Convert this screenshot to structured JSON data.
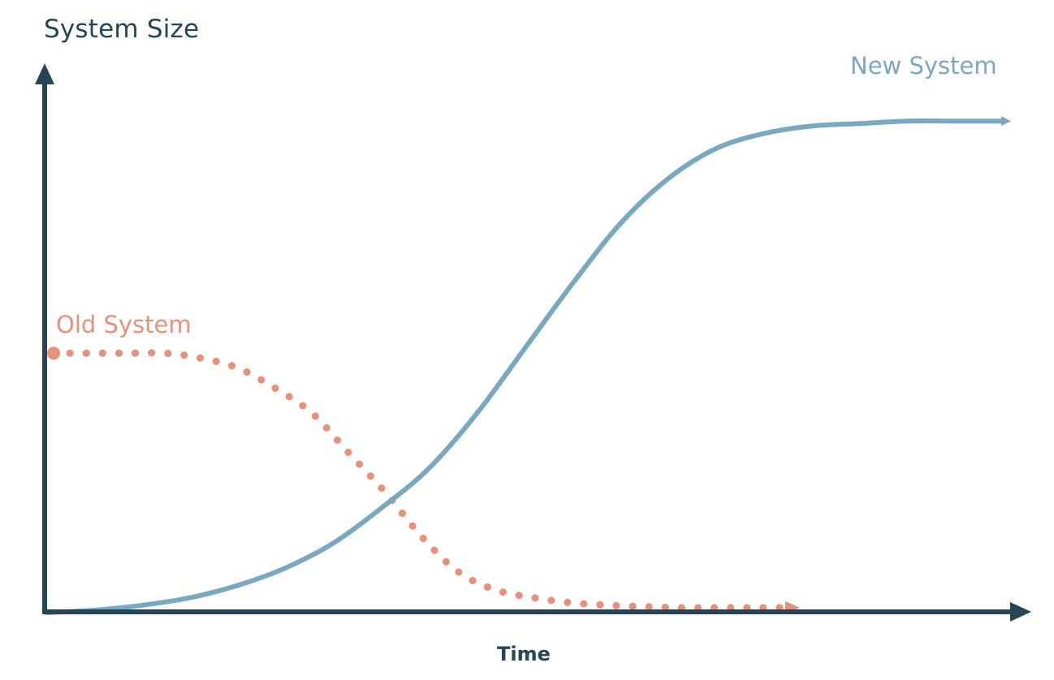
{
  "chart_data": {
    "type": "line",
    "title": "",
    "xlabel": "Time",
    "ylabel": "System Size",
    "grid": false,
    "series": [
      {
        "name": "Old System",
        "style": "dotted",
        "color": "#e7907a",
        "x": [
          0,
          0.05,
          0.1,
          0.15,
          0.2,
          0.25,
          0.3,
          0.35,
          0.4,
          0.45,
          0.5,
          0.55,
          0.6,
          0.65,
          0.7,
          0.75,
          0.8,
          0.85,
          0.9,
          0.95,
          1.0
        ],
        "y": [
          0.52,
          0.52,
          0.52,
          0.52,
          0.51,
          0.49,
          0.45,
          0.4,
          0.32,
          0.24,
          0.15,
          0.08,
          0.045,
          0.03,
          0.02,
          0.015,
          0.012,
          0.01,
          0.01,
          0.01,
          0.01
        ]
      },
      {
        "name": "New System",
        "style": "solid",
        "color": "#79a9c0",
        "x": [
          0,
          0.05,
          0.1,
          0.15,
          0.2,
          0.25,
          0.3,
          0.35,
          0.4,
          0.45,
          0.5,
          0.55,
          0.6,
          0.65,
          0.7,
          0.75,
          0.8,
          0.85,
          0.9,
          0.95,
          1.0
        ],
        "y": [
          0,
          0.005,
          0.015,
          0.03,
          0.055,
          0.09,
          0.14,
          0.21,
          0.29,
          0.4,
          0.53,
          0.66,
          0.78,
          0.87,
          0.93,
          0.96,
          0.975,
          0.98,
          0.985,
          0.985,
          0.985
        ]
      }
    ]
  },
  "colors": {
    "axis": "#274554",
    "old_system": "#e7907a",
    "new_system": "#79a9c0"
  }
}
